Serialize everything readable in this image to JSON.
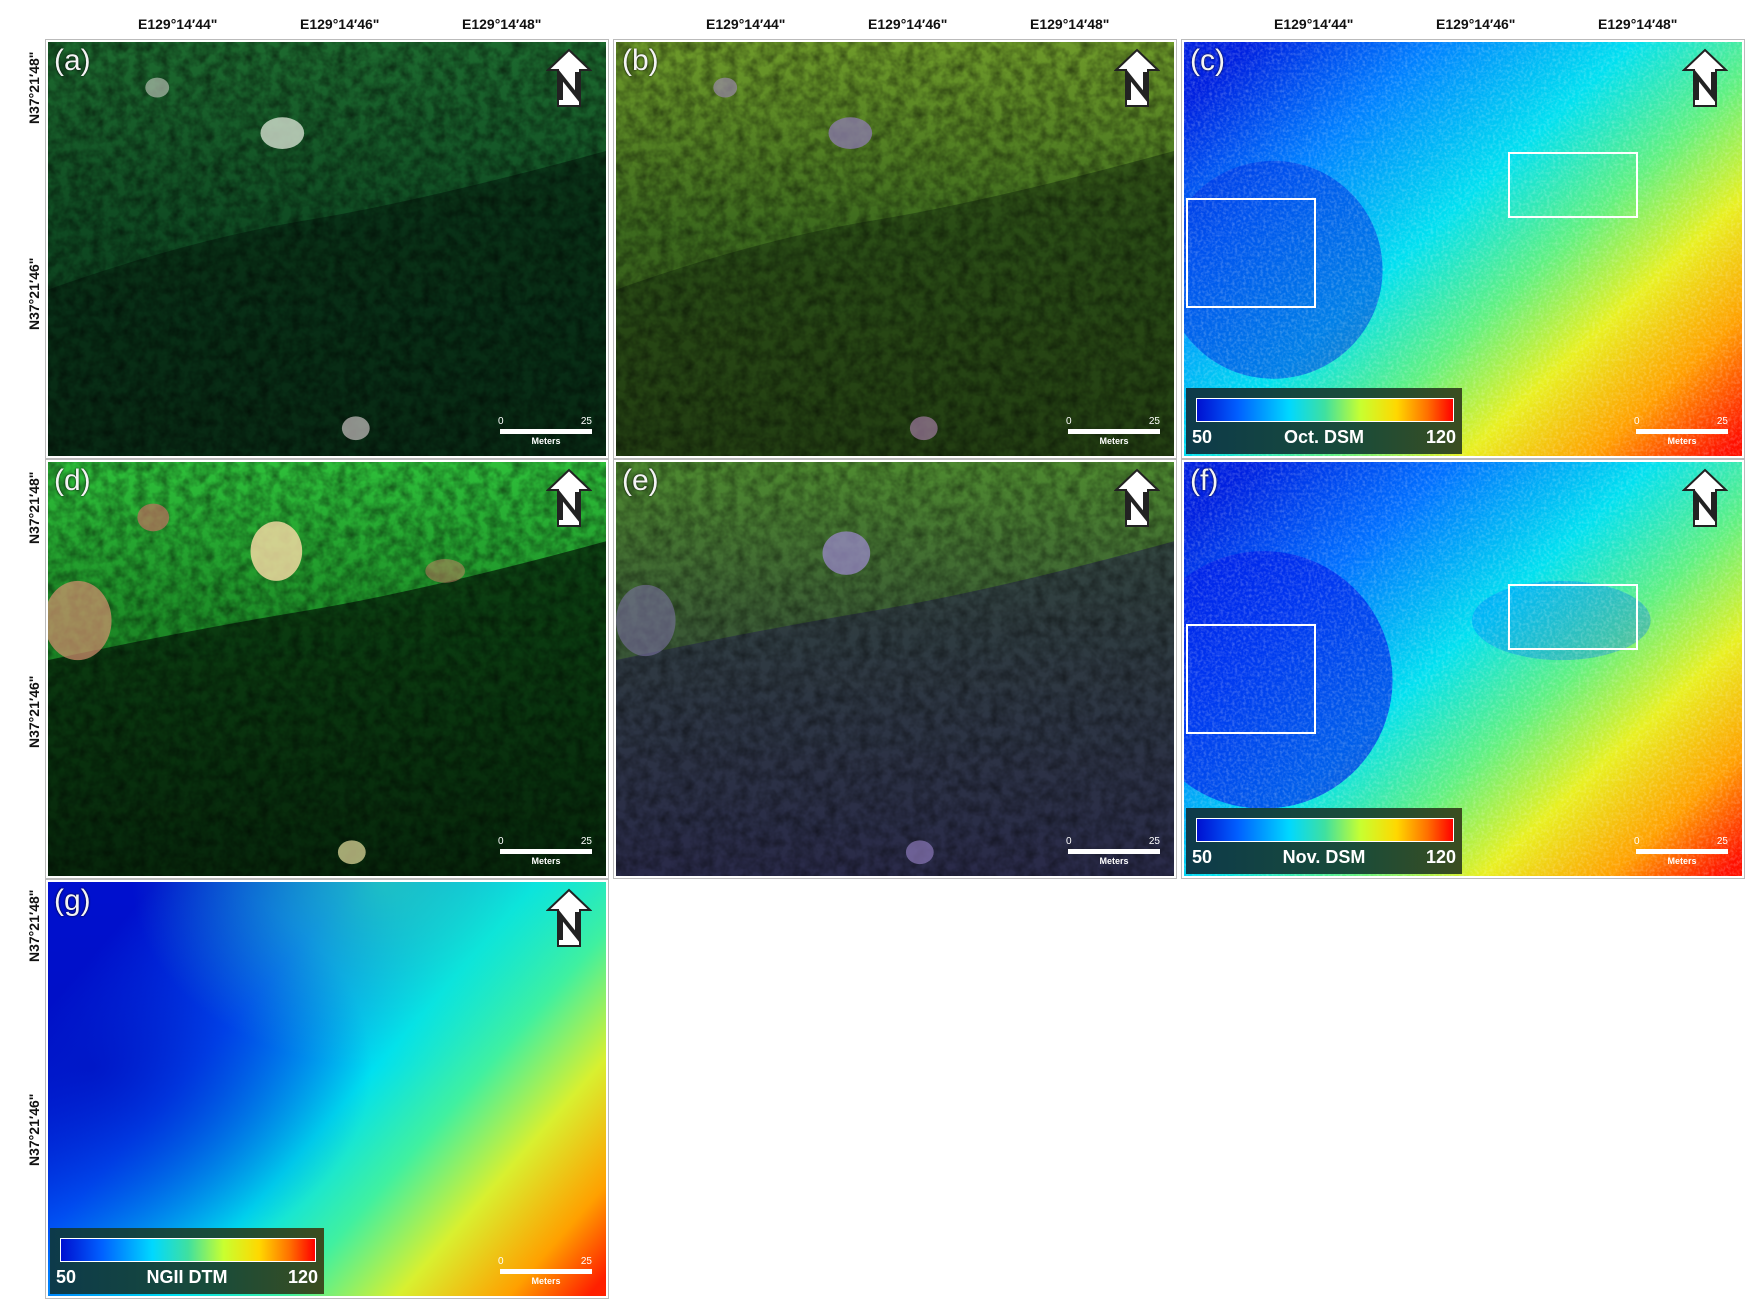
{
  "top_coords": [
    "E129°14′44\"",
    "E129°14′46\"",
    "E129°14′48\""
  ],
  "left_coords": [
    "N37°21′48\"",
    "N37°21′46\""
  ],
  "scalebar": {
    "zero": "0",
    "max": "25",
    "unit": "Meters"
  },
  "panels": {
    "a": {
      "label": "(a)"
    },
    "b": {
      "label": "(b)"
    },
    "c": {
      "label": "(c)",
      "legend": {
        "min": "50",
        "max": "120",
        "title": "Oct. DSM"
      }
    },
    "d": {
      "label": "(d)"
    },
    "e": {
      "label": "(e)"
    },
    "f": {
      "label": "(f)",
      "legend": {
        "min": "50",
        "max": "120",
        "title": "Nov. DSM"
      }
    },
    "g": {
      "label": "(g)",
      "legend": {
        "min": "50",
        "max": "120",
        "title": "NGII DTM"
      }
    }
  },
  "icons": {
    "north_arrow": "north-arrow-icon"
  }
}
